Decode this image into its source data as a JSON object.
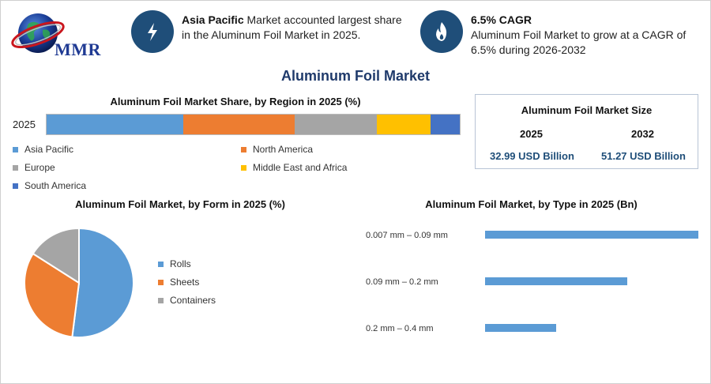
{
  "brand": {
    "logo_text": "MMR"
  },
  "highlights": [
    {
      "bold": "Asia Pacific",
      "text": " Market accounted largest share in the Aluminum Foil Market in 2025.",
      "icon": "lightning-icon"
    },
    {
      "bold": "6.5% CAGR",
      "text": "Aluminum Foil Market to grow at a CAGR of 6.5% during 2026-2032",
      "icon": "flame-icon"
    }
  ],
  "main_title": "Aluminum Foil Market",
  "colors": {
    "asia_pacific": "#5b9bd5",
    "north_america": "#ed7d31",
    "europe": "#a5a5a5",
    "mea": "#ffc000",
    "south_america": "#4472c4",
    "accent": "#1f4e79"
  },
  "market_size": {
    "title": "Aluminum Foil Market Size",
    "year1": "2025",
    "year2": "2032",
    "value1": "32.99 USD Billion",
    "value2": "51.27 USD Billion"
  },
  "chart_data": [
    {
      "type": "bar",
      "orientation": "horizontal-stacked-100",
      "title": "Aluminum Foil Market Share, by Region in 2025 (%)",
      "categories": [
        "2025"
      ],
      "series": [
        {
          "name": "Asia Pacific",
          "values": [
            33
          ]
        },
        {
          "name": "North America",
          "values": [
            27
          ]
        },
        {
          "name": "Europe",
          "values": [
            20
          ]
        },
        {
          "name": "Middle East and Africa",
          "values": [
            13
          ]
        },
        {
          "name": "South America",
          "values": [
            7
          ]
        }
      ],
      "legend": "bottom"
    },
    {
      "type": "pie",
      "title": "Aluminum Foil Market, by Form in 2025 (%)",
      "categories": [
        "Rolls",
        "Sheets",
        "Containers"
      ],
      "values": [
        52,
        32,
        16
      ],
      "legend": "right"
    },
    {
      "type": "bar",
      "orientation": "horizontal",
      "title": "Aluminum Foil Market, by Type in 2025 (Bn)",
      "categories": [
        "0.007 mm – 0.09 mm",
        "0.09 mm – 0.2 mm",
        "0.2 mm – 0.4 mm"
      ],
      "values": [
        15,
        10,
        5
      ],
      "xlim": [
        0,
        15
      ]
    }
  ]
}
